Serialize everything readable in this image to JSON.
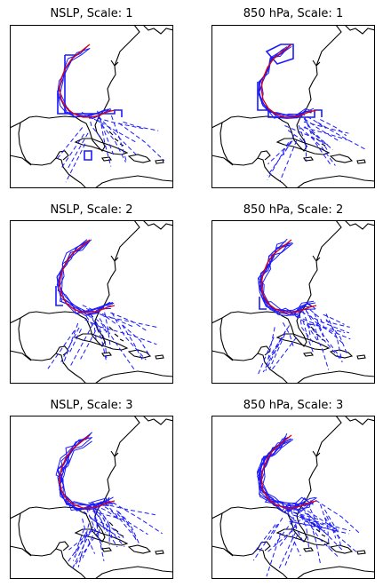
{
  "figure": {
    "panels": [
      {
        "title": "NSLP, Scale: 1"
      },
      {
        "title": "850 hPa, Scale: 1"
      },
      {
        "title": "NSLP, Scale: 2"
      },
      {
        "title": "850 hPa, Scale: 2"
      },
      {
        "title": "NSLP, Scale: 3"
      },
      {
        "title": "850 hPa, Scale: 3"
      }
    ],
    "colors": {
      "coastline": "#000000",
      "observed_track": "#e00000",
      "detected_tracks": "#1a1aff",
      "frame": "#000000"
    },
    "legend": "none"
  }
}
